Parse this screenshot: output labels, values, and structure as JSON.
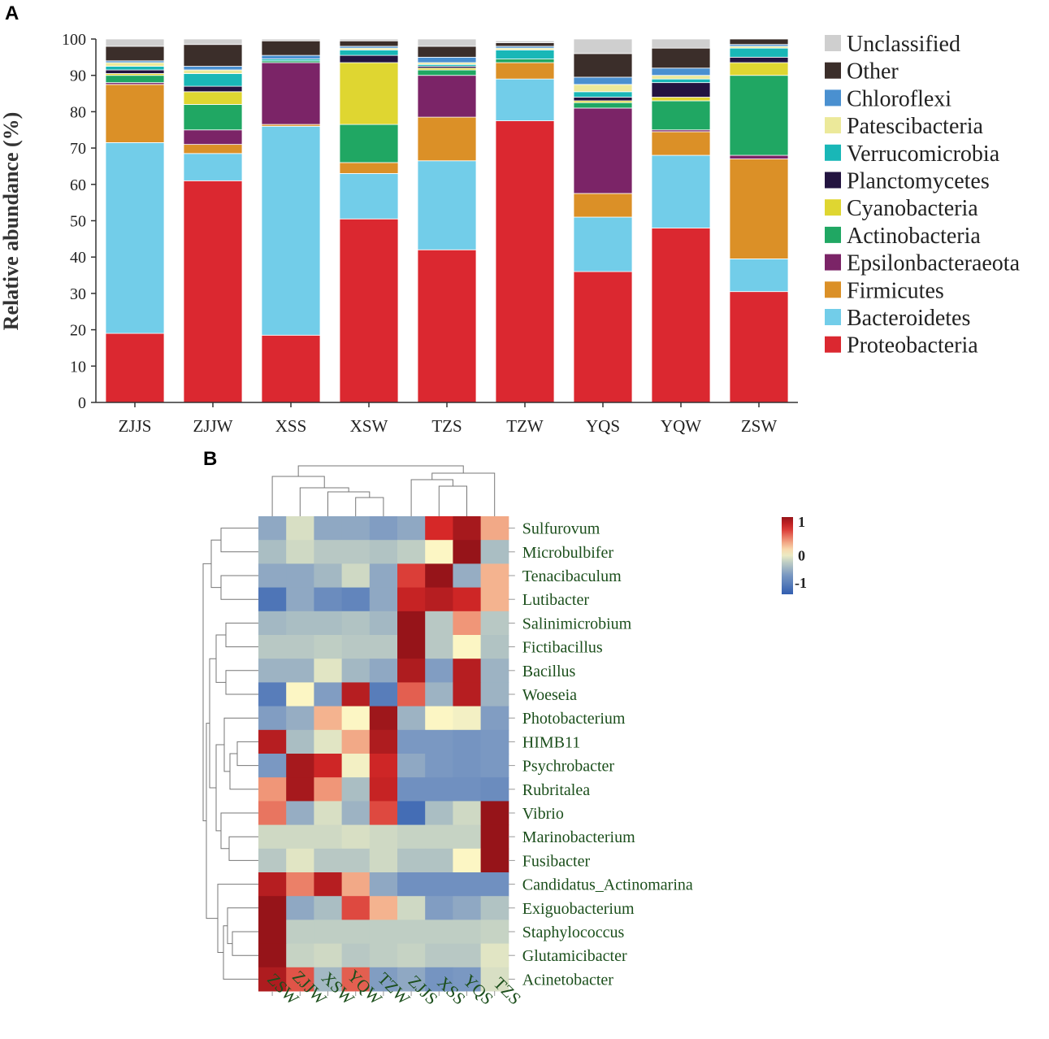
{
  "panel_a_label": "A",
  "panel_b_label": "B",
  "colors": {
    "Unclassified": "#cfcfcf",
    "Other": "#3b2e2a",
    "Chloroflexi": "#4a90d0",
    "Patescibacteria": "#ece99a",
    "Verrucomicrobia": "#19b7b7",
    "Planctomycetes": "#231440",
    "Cyanobacteria": "#dfd631",
    "Actinobacteria": "#20a763",
    "Epsilonbacteraeota": "#7b2467",
    "Firmicutes": "#db9027",
    "Bacteroidetes": "#72cde9",
    "Proteobacteria": "#db2830",
    "heat_text": "#1c4f1c",
    "dendro": "#777777"
  },
  "chart_data": [
    {
      "type": "bar",
      "stacked": true,
      "ylabel": "Relative abundance (%)",
      "xlabel": "",
      "ylim": [
        0,
        100
      ],
      "yticks": [
        "0",
        "10",
        "20",
        "30",
        "40",
        "50",
        "60",
        "70",
        "80",
        "90",
        "100"
      ],
      "categories": [
        "ZJJS",
        "ZJJW",
        "XSS",
        "XSW",
        "TZS",
        "TZW",
        "YQS",
        "YQW",
        "ZSW"
      ],
      "legend_position": "right",
      "series": [
        {
          "name": "Proteobacteria",
          "values": [
            19,
            61,
            18.5,
            50.5,
            42,
            77.5,
            36,
            48,
            30.5
          ]
        },
        {
          "name": "Bacteroidetes",
          "values": [
            52.5,
            7.5,
            57.5,
            12.5,
            24.5,
            11.5,
            15,
            20,
            9
          ]
        },
        {
          "name": "Firmicutes",
          "values": [
            16,
            2.5,
            0.5,
            3,
            12,
            4.5,
            6.5,
            6.5,
            27.5
          ]
        },
        {
          "name": "Epsilonbacteraeota",
          "values": [
            0.5,
            4,
            17,
            0,
            11.5,
            0,
            23.5,
            0.5,
            1
          ]
        },
        {
          "name": "Actinobacteria",
          "values": [
            2,
            7,
            0.5,
            10.5,
            1.5,
            1,
            1.5,
            8,
            22
          ]
        },
        {
          "name": "Cyanobacteria",
          "values": [
            0.5,
            3.5,
            0,
            17,
            0.5,
            0,
            0.5,
            1,
            3.5
          ]
        },
        {
          "name": "Planctomycetes",
          "values": [
            1,
            1.5,
            0,
            2,
            0.5,
            0,
            1,
            4,
            1.5
          ]
        },
        {
          "name": "Verrucomicrobia",
          "values": [
            1,
            3.5,
            0.5,
            1.5,
            0.5,
            2.5,
            1.5,
            1,
            2.5
          ]
        },
        {
          "name": "Patescibacteria",
          "values": [
            1,
            1,
            0,
            0.5,
            0.5,
            0.5,
            2,
            1,
            0.5
          ]
        },
        {
          "name": "Chloroflexi",
          "values": [
            0.5,
            1,
            1,
            0.5,
            1.5,
            0.5,
            2,
            2,
            0.5
          ]
        },
        {
          "name": "Other",
          "values": [
            4,
            6,
            4,
            1.5,
            3,
            1,
            6.5,
            5.5,
            1.5
          ]
        },
        {
          "name": "Unclassified",
          "values": [
            2,
            1.5,
            0.5,
            0.5,
            2,
            0.5,
            4,
            2.5,
            0
          ]
        }
      ],
      "legend_order": [
        "Unclassified",
        "Other",
        "Chloroflexi",
        "Patescibacteria",
        "Verrucomicrobia",
        "Planctomycetes",
        "Cyanobacteria",
        "Actinobacteria",
        "Epsilonbacteraeota",
        "Firmicutes",
        "Bacteroidetes",
        "Proteobacteria"
      ]
    },
    {
      "type": "heatmap",
      "columns": [
        "ZSW",
        "ZJJW",
        "XSW",
        "YQW",
        "TZW",
        "ZJJS",
        "XSS",
        "YQS",
        "TZS"
      ],
      "rows": [
        "Sulfurovum",
        "Microbulbifer",
        "Tenacibaculum",
        "Lutibacter",
        "Salinimicrobium",
        "Fictibacillus",
        "Bacillus",
        "Woeseia",
        "Photobacterium",
        "HIMB11",
        "Psychrobacter",
        "Rubritalea",
        "Vibrio",
        "Marinobacterium",
        "Fusibacter",
        "Candidatus_Actinomarina",
        "Exiguobacterium",
        "Staphylococcus",
        "Glutamicibacter",
        "Acinetobacter"
      ],
      "values": [
        [
          -0.6,
          -0.1,
          -0.6,
          -0.6,
          -0.7,
          -0.6,
          1.1,
          1.4,
          0.5
        ],
        [
          -0.4,
          -0.15,
          -0.3,
          -0.3,
          -0.35,
          -0.25,
          0.1,
          1.5,
          -0.4
        ],
        [
          -0.6,
          -0.6,
          -0.45,
          -0.15,
          -0.6,
          1.0,
          1.5,
          -0.55,
          0.45
        ],
        [
          -1.2,
          -0.6,
          -0.9,
          -1.0,
          -0.6,
          1.2,
          1.3,
          1.15,
          0.45
        ],
        [
          -0.45,
          -0.4,
          -0.4,
          -0.35,
          -0.45,
          1.5,
          -0.3,
          0.6,
          -0.3
        ],
        [
          -0.3,
          -0.3,
          -0.25,
          -0.3,
          -0.3,
          1.5,
          -0.3,
          0.1,
          -0.35
        ],
        [
          -0.5,
          -0.5,
          -0.05,
          -0.45,
          -0.6,
          1.35,
          -0.7,
          1.3,
          -0.5
        ],
        [
          -1.1,
          0.1,
          -0.7,
          1.3,
          -1.1,
          0.85,
          -0.5,
          1.3,
          -0.5
        ],
        [
          -0.7,
          -0.55,
          0.45,
          0.1,
          1.45,
          -0.5,
          0.1,
          0.05,
          -0.7
        ],
        [
          1.3,
          -0.4,
          -0.05,
          0.5,
          1.35,
          -0.75,
          -0.75,
          -0.8,
          -0.75
        ],
        [
          -0.75,
          1.4,
          1.15,
          0.05,
          1.15,
          -0.6,
          -0.75,
          -0.8,
          -0.75
        ],
        [
          0.6,
          1.4,
          0.6,
          -0.4,
          1.2,
          -0.85,
          -0.85,
          -0.85,
          -0.9
        ],
        [
          0.75,
          -0.55,
          -0.1,
          -0.5,
          0.95,
          -1.3,
          -0.4,
          -0.15,
          1.5
        ],
        [
          -0.15,
          -0.15,
          -0.15,
          -0.1,
          -0.15,
          -0.2,
          -0.2,
          -0.2,
          1.5
        ],
        [
          -0.3,
          -0.05,
          -0.3,
          -0.3,
          -0.15,
          -0.35,
          -0.35,
          0.1,
          1.5
        ],
        [
          1.3,
          0.7,
          1.3,
          0.5,
          -0.6,
          -0.85,
          -0.85,
          -0.85,
          -0.85
        ],
        [
          1.5,
          -0.6,
          -0.4,
          0.95,
          0.45,
          -0.15,
          -0.7,
          -0.6,
          -0.35
        ],
        [
          1.5,
          -0.25,
          -0.25,
          -0.25,
          -0.25,
          -0.25,
          -0.25,
          -0.25,
          -0.2
        ],
        [
          1.5,
          -0.2,
          -0.15,
          -0.3,
          -0.25,
          -0.2,
          -0.3,
          -0.3,
          -0.05
        ],
        [
          1.35,
          0.9,
          -0.45,
          0.85,
          -0.7,
          -0.6,
          -0.8,
          -0.75,
          -0.1
        ]
      ],
      "color_scale_labels": [
        "1",
        "0",
        "-1"
      ],
      "color_range": [
        -1.5,
        1.5
      ]
    }
  ]
}
